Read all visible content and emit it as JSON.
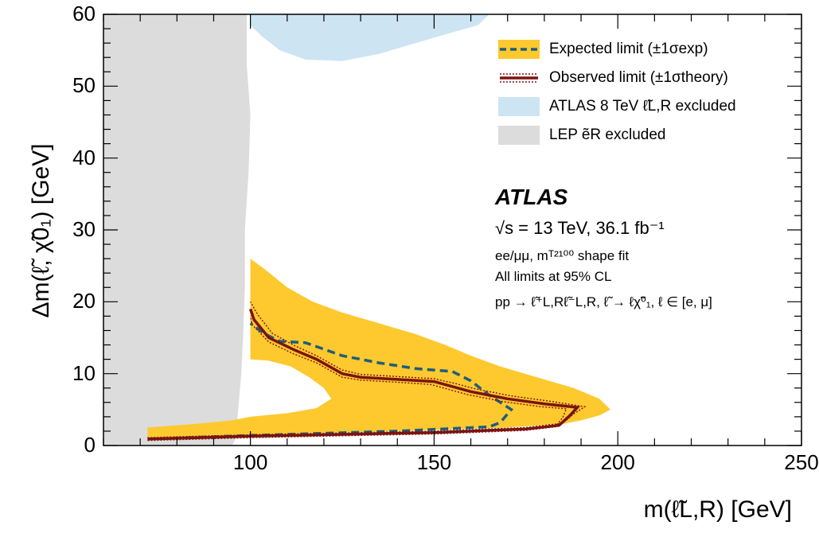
{
  "chart_data": {
    "type": "area",
    "xlabel": "m(ℓ̃L,R) [GeV]",
    "ylabel": "Δm(ℓ̃, χ̃0₁) [GeV]",
    "xlim": [
      60,
      250
    ],
    "ylim": [
      0,
      60
    ],
    "x_ticks": [
      "100",
      "150",
      "200",
      "250"
    ],
    "y_ticks": [
      "0",
      "10",
      "20",
      "30",
      "40",
      "50",
      "60"
    ],
    "legend_position": "top-right",
    "colors": {
      "expected_band": "#fdc92f",
      "expected_line": "#1f5e7a",
      "observed": "#7a1410",
      "atlas8tev": "#cde4f3",
      "lep": "#dcdcdc"
    },
    "legend": [
      {
        "id": "expected",
        "label": "Expected limit (±1σexp)"
      },
      {
        "id": "observed",
        "label": "Observed limit (±1σtheory)"
      },
      {
        "id": "atlas8",
        "label": "ATLAS 8 TeV ℓ̃L,R excluded"
      },
      {
        "id": "lep",
        "label": "LEP ẽR excluded"
      }
    ],
    "annotations": {
      "experiment": "ATLAS",
      "energy": "√s = 13 TeV, 36.1 fb⁻¹",
      "fit": "ee/μμ, mᵀ²¹⁰⁰ shape fit",
      "cl": "All limits at 95% CL",
      "process": "pp → ℓ̃⁺L,Rℓ̃⁻L,R, ℓ̃ → ℓχ̃⁰₁, ℓ ∈ [e, μ]"
    },
    "series": [
      {
        "name": "LEP ẽR excluded",
        "kind": "region",
        "points": [
          [
            60,
            0
          ],
          [
            60,
            60
          ],
          [
            99,
            60
          ],
          [
            99,
            53
          ],
          [
            100,
            46
          ],
          [
            99.5,
            38
          ],
          [
            98.5,
            30
          ],
          [
            98.5,
            22
          ],
          [
            98,
            15
          ],
          [
            97.5,
            10
          ],
          [
            97,
            7
          ],
          [
            96.5,
            4
          ],
          [
            96,
            1
          ],
          [
            95,
            0
          ]
        ]
      },
      {
        "name": "ATLAS 8 TeV ℓ̃L,R excluded",
        "kind": "region",
        "points": [
          [
            100,
            60
          ],
          [
            100,
            58.5
          ],
          [
            103,
            57
          ],
          [
            108,
            55
          ],
          [
            115,
            53.7
          ],
          [
            125,
            53.5
          ],
          [
            135,
            54.5
          ],
          [
            145,
            56
          ],
          [
            155,
            57.5
          ],
          [
            162,
            58.5
          ],
          [
            165,
            60
          ]
        ]
      },
      {
        "name": "Expected limit band (±1σexp)",
        "kind": "band",
        "points": [
          [
            72,
            0.8
          ],
          [
            90,
            1.2
          ],
          [
            110,
            1.6
          ],
          [
            140,
            2
          ],
          [
            170,
            2.5
          ],
          [
            185,
            3
          ],
          [
            190,
            3.5
          ],
          [
            195,
            4.2
          ],
          [
            198,
            5
          ],
          [
            195,
            6.5
          ],
          [
            188,
            8
          ],
          [
            178,
            9.5
          ],
          [
            168,
            11
          ],
          [
            160,
            12.5
          ],
          [
            153,
            14
          ],
          [
            145,
            15.5
          ],
          [
            135,
            17
          ],
          [
            125,
            18.5
          ],
          [
            117,
            20
          ],
          [
            110,
            22
          ],
          [
            104,
            24.5
          ],
          [
            100,
            26
          ],
          [
            100,
            12
          ],
          [
            105,
            11.8
          ],
          [
            111,
            11
          ],
          [
            116,
            9.5
          ],
          [
            120,
            8
          ],
          [
            122,
            6.5
          ],
          [
            118,
            5.2
          ],
          [
            110,
            4.5
          ],
          [
            100,
            4
          ],
          [
            95,
            3.5
          ],
          [
            85,
            3
          ],
          [
            72,
            2.5
          ]
        ]
      },
      {
        "name": "Expected limit",
        "kind": "line",
        "points": [
          [
            72,
            0.9
          ],
          [
            100,
            1.4
          ],
          [
            140,
            2
          ],
          [
            165,
            2.6
          ],
          [
            168,
            3.2
          ],
          [
            171,
            5
          ],
          [
            165,
            7
          ],
          [
            160,
            9
          ],
          [
            155,
            10.3
          ],
          [
            145,
            10.7
          ],
          [
            135,
            11.5
          ],
          [
            125,
            12.5
          ],
          [
            115,
            14.3
          ],
          [
            108,
            14.5
          ],
          [
            104,
            15.5
          ],
          [
            100,
            17
          ]
        ]
      },
      {
        "name": "Observed limit",
        "kind": "line",
        "points": [
          [
            72,
            0.9
          ],
          [
            100,
            1.3
          ],
          [
            150,
            1.8
          ],
          [
            175,
            2.3
          ],
          [
            184,
            2.8
          ],
          [
            187,
            4.2
          ],
          [
            189,
            5.3
          ],
          [
            180,
            5.8
          ],
          [
            170,
            6.5
          ],
          [
            160,
            7.5
          ],
          [
            155,
            8.2
          ],
          [
            150,
            8.9
          ],
          [
            140,
            9.2
          ],
          [
            130,
            9.5
          ],
          [
            125,
            10
          ],
          [
            118,
            12
          ],
          [
            112,
            13.3
          ],
          [
            105,
            15
          ],
          [
            101,
            17.5
          ],
          [
            100,
            19
          ]
        ]
      },
      {
        "name": "Observed limit +1σtheory",
        "kind": "line",
        "points": [
          [
            72,
            1.1
          ],
          [
            100,
            1.5
          ],
          [
            150,
            2
          ],
          [
            175,
            2.5
          ],
          [
            185,
            3.1
          ],
          [
            188,
            4.4
          ],
          [
            191,
            5.4
          ],
          [
            181,
            6.2
          ],
          [
            171,
            6.9
          ],
          [
            161,
            7.9
          ],
          [
            156,
            8.6
          ],
          [
            150,
            9.3
          ],
          [
            140,
            9.6
          ],
          [
            130,
            9.9
          ],
          [
            125,
            10.5
          ],
          [
            118,
            12.5
          ],
          [
            112,
            13.9
          ],
          [
            106,
            15.6
          ],
          [
            102,
            18.2
          ],
          [
            100,
            20
          ]
        ]
      },
      {
        "name": "Observed limit -1σtheory",
        "kind": "line",
        "points": [
          [
            72,
            0.7
          ],
          [
            100,
            1.1
          ],
          [
            150,
            1.6
          ],
          [
            175,
            2.1
          ],
          [
            183,
            2.6
          ],
          [
            185,
            3.9
          ],
          [
            186,
            5.1
          ],
          [
            179,
            5.4
          ],
          [
            169,
            6.1
          ],
          [
            159,
            7.1
          ],
          [
            154,
            7.8
          ],
          [
            149,
            8.5
          ],
          [
            140,
            8.8
          ],
          [
            130,
            9.1
          ],
          [
            125,
            9.5
          ],
          [
            118,
            11.5
          ],
          [
            112,
            12.7
          ],
          [
            105,
            14.4
          ],
          [
            100.5,
            16.8
          ],
          [
            100,
            18
          ]
        ]
      }
    ]
  }
}
